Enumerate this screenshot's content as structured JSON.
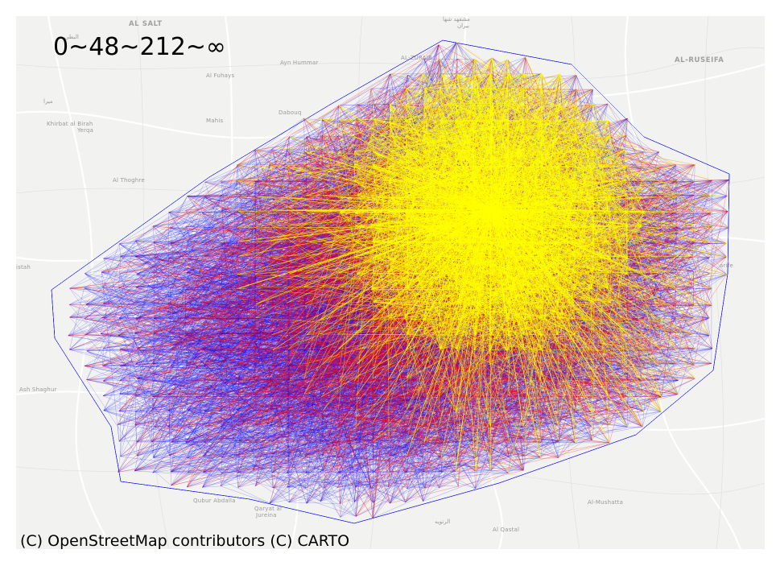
{
  "map": {
    "title": "0~48~212~∞",
    "attribution": "(C) OpenStreetMap contributors (C) CARTO",
    "basemap_style": "light gray street map",
    "flow_colors": {
      "tier_0_48": "#0000ff",
      "tier_48_212": "#ff0000",
      "tier_212_inf": "#ffff00"
    },
    "places": {
      "al_salt": "AL SALT",
      "al_ruseifa": "AL-RUSEIFA",
      "arabic_top_left": "البطي",
      "ayn_hummar": "Ayn Hummar",
      "al_fuhays": "Al Fuhays",
      "dabouq": "Dabouq",
      "al_zuraiba": "AL-ZURAIB",
      "arabic_top_center": "مشقهد شها",
      "arabic_top_center2": "بيران",
      "arabic_left": "ميرا",
      "khirbat": "Khirbat al Birah",
      "yerqa": "Yerqa",
      "mahis": "Mahis",
      "al_thoghre": "Al Thoghre",
      "istah": "istah",
      "arife": "arife",
      "ash_shaghur": "Ash Shaghur",
      "qubur": "Qubur Abdalla",
      "qaryat": "Qaryat al",
      "jureina": "Jureina",
      "arabic_bottom": "الرتويه",
      "al_qastal": "Al Qastal",
      "al_mushatta": "Al-Mushatta"
    }
  }
}
